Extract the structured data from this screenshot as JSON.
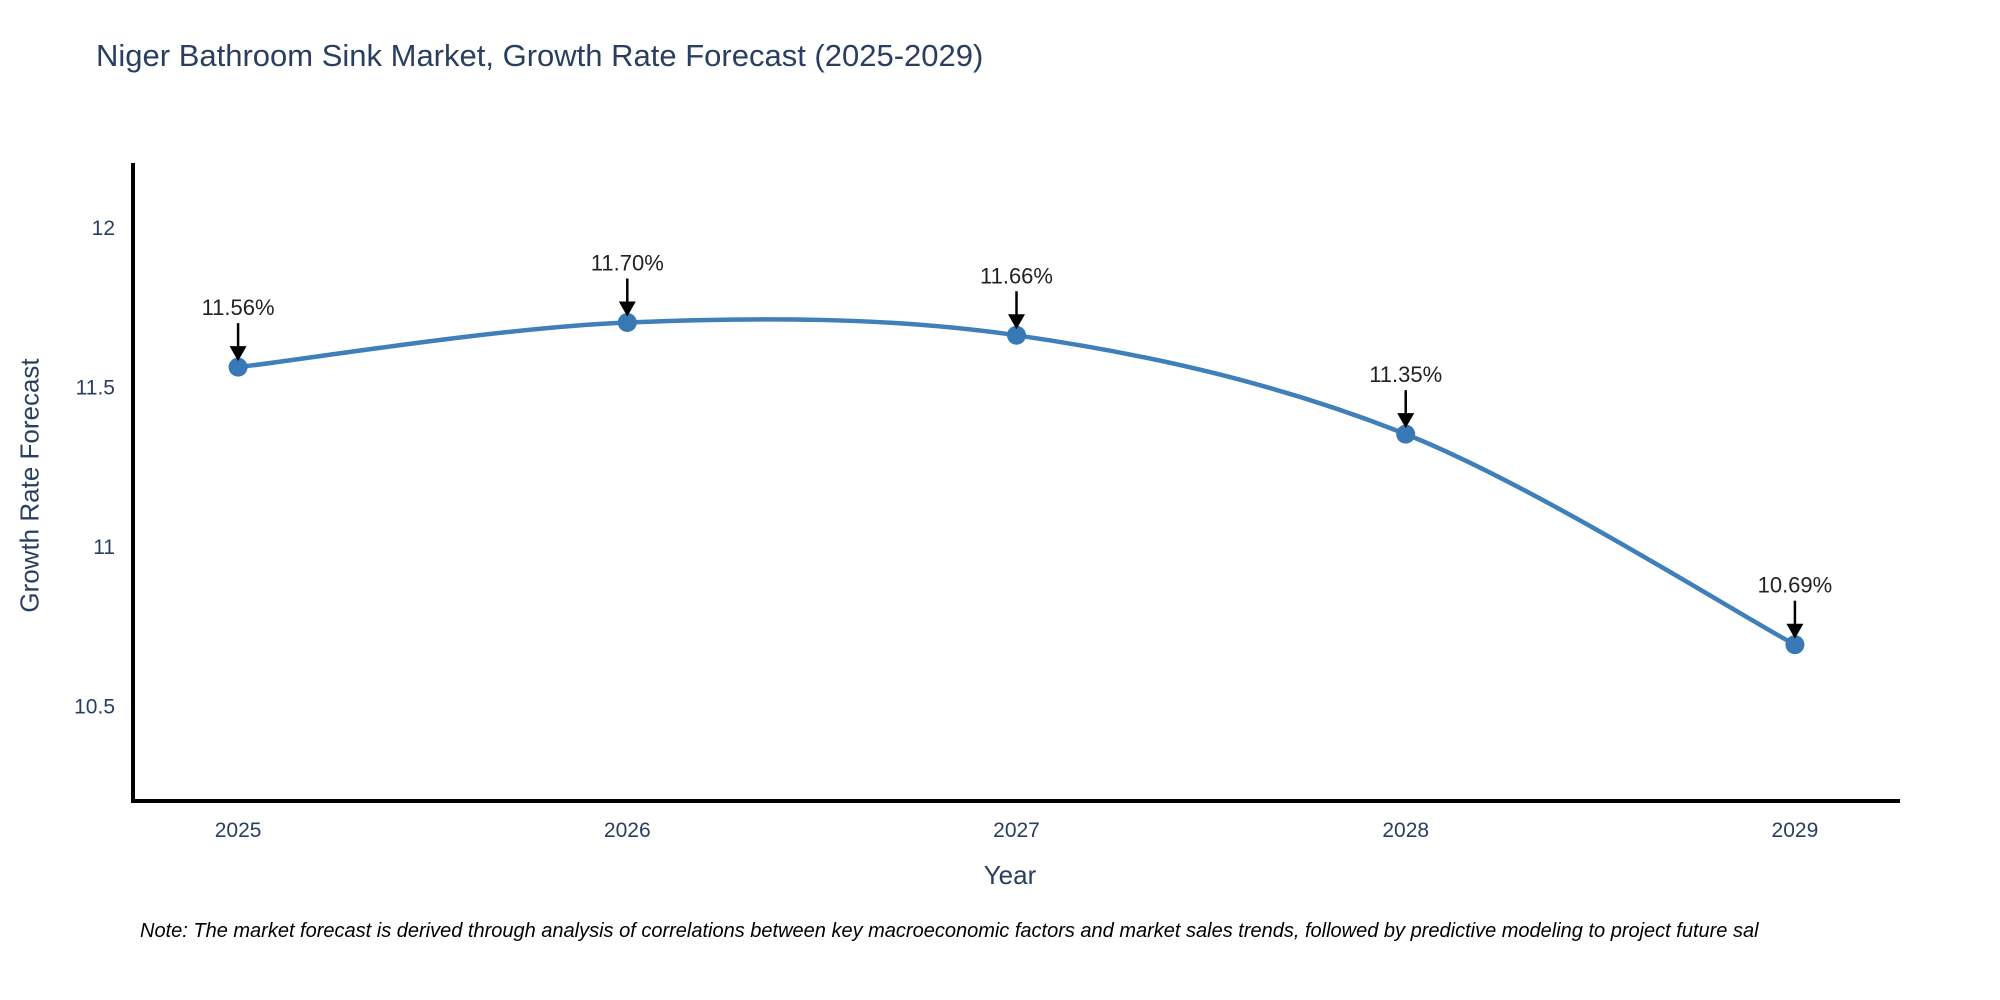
{
  "chart_data": {
    "type": "line",
    "title": "Niger Bathroom Sink Market, Growth Rate Forecast (2025-2029)",
    "xlabel": "Year",
    "ylabel": "Growth Rate Forecast",
    "x": [
      2025,
      2026,
      2027,
      2028,
      2029
    ],
    "values": [
      11.56,
      11.7,
      11.66,
      11.35,
      10.69
    ],
    "point_labels": [
      "11.56%",
      "11.70%",
      "11.66%",
      "11.35%",
      "10.69%"
    ],
    "x_tick_labels": [
      "2025",
      "2026",
      "2027",
      "2028",
      "2029"
    ],
    "y_ticks": [
      10.5,
      11,
      11.5,
      12
    ],
    "y_tick_labels": [
      "10.5",
      "11",
      "11.5",
      "12"
    ],
    "x_range": [
      2024.73,
      2029.27
    ],
    "y_range": [
      10.2,
      12.2
    ],
    "line_shape": "spline",
    "grid": false,
    "legend": "none",
    "note": "Note: The market forecast is derived through analysis of correlations between key macroeconomic factors and market sales trends, followed by predictive modeling to project future sal",
    "colors": {
      "line": "#3f7fba",
      "marker": "#3878b4",
      "axis_line": "#000000",
      "tick_text": "#2a3f5f",
      "annotation_text": "#222222",
      "annotation_arrow": "#000000",
      "title_text": "#2a3f5f"
    }
  }
}
